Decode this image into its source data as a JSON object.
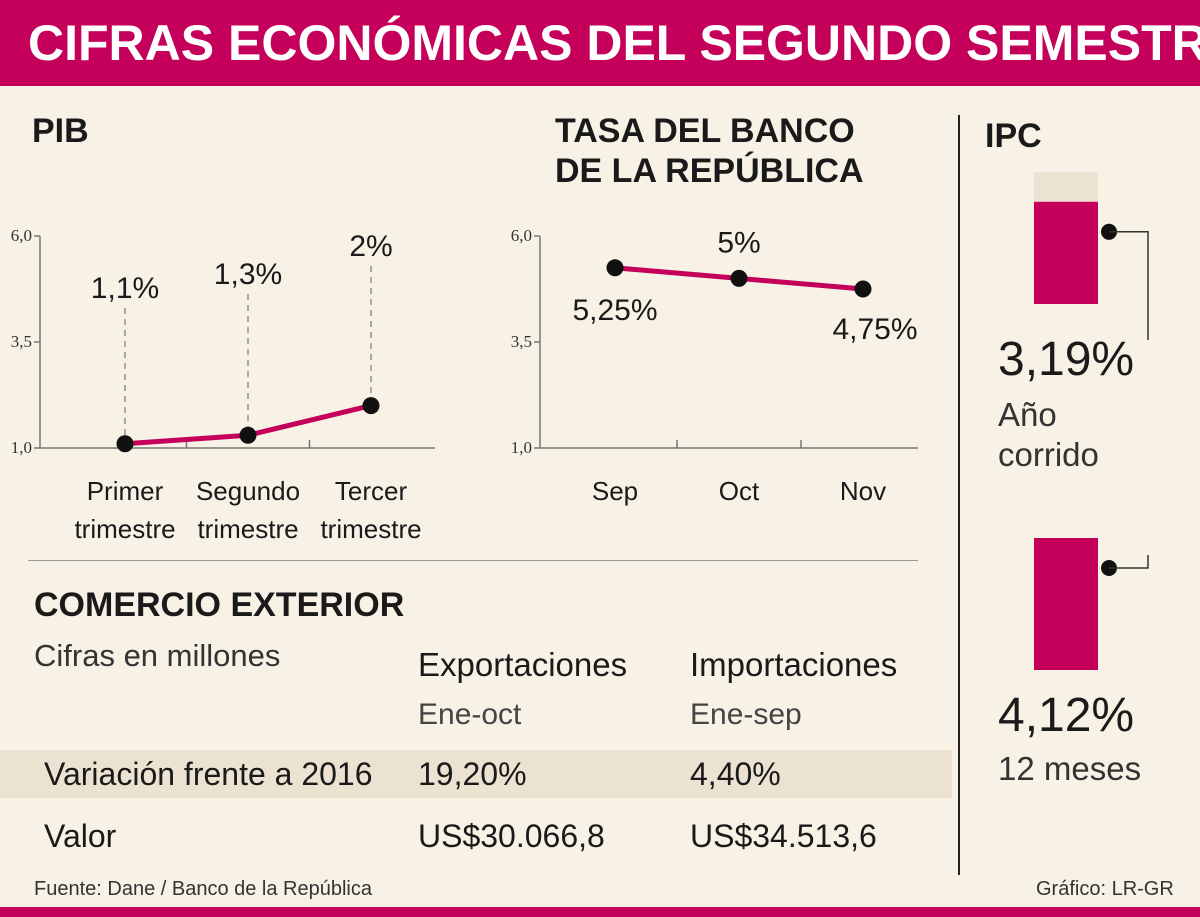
{
  "title": "CIFRAS ECONÓMICAS DEL SEGUNDO SEMESTRE",
  "colors": {
    "accent": "#c4005a",
    "background": "#f7f1e6",
    "shade": "#ece2d1",
    "bar_light": "#ece2d1"
  },
  "chart_data": [
    {
      "type": "line",
      "title": "PIB",
      "categories": [
        "Primer trimestre",
        "Segundo trimestre",
        "Tercer trimestre"
      ],
      "category_lines": [
        [
          "Primer",
          "trimestre"
        ],
        [
          "Segundo",
          "trimestre"
        ],
        [
          "Tercer",
          "trimestre"
        ]
      ],
      "values": [
        1.1,
        1.3,
        2.0
      ],
      "data_labels": [
        "1,1%",
        "1,3%",
        "2%"
      ],
      "yticks": [
        "6,0",
        "3,5",
        "1,0"
      ],
      "ytick_values": [
        6.0,
        3.5,
        1.0
      ],
      "ylim": [
        1.0,
        6.0
      ]
    },
    {
      "type": "line",
      "title_lines": [
        "TASA DEL BANCO",
        "DE LA REPÚBLICA"
      ],
      "categories": [
        "Sep",
        "Oct",
        "Nov"
      ],
      "values": [
        5.25,
        5.0,
        4.75
      ],
      "data_labels": [
        "5,25%",
        "5%",
        "4,75%"
      ],
      "yticks": [
        "6,0",
        "3,5",
        "1,0"
      ],
      "ytick_values": [
        6.0,
        3.5,
        1.0
      ],
      "ylim": [
        1.0,
        6.0
      ]
    },
    {
      "type": "bar",
      "title": "IPC",
      "items": [
        {
          "value": 3.19,
          "label": "3,19%",
          "caption_lines": [
            "Año",
            "corrido"
          ]
        },
        {
          "value": 4.12,
          "label": "4,12%",
          "caption_lines": [
            "12 meses"
          ]
        }
      ],
      "scale_max": 4.12
    }
  ],
  "comercio": {
    "title": "COMERCIO EXTERIOR",
    "subtitle": "Cifras en millones",
    "columns": [
      {
        "head": "Exportaciones",
        "sub": "Ene-oct"
      },
      {
        "head": "Importaciones",
        "sub": "Ene-sep"
      }
    ],
    "rows": [
      {
        "label": "Variación frente a 2016",
        "values": [
          "19,20%",
          "4,40%"
        ]
      },
      {
        "label": "Valor",
        "values": [
          "US$30.066,8",
          "US$34.513,6"
        ]
      }
    ]
  },
  "footer": {
    "source": "Fuente: Dane / Banco de la República",
    "credit": "Gráfico: LR-GR"
  }
}
